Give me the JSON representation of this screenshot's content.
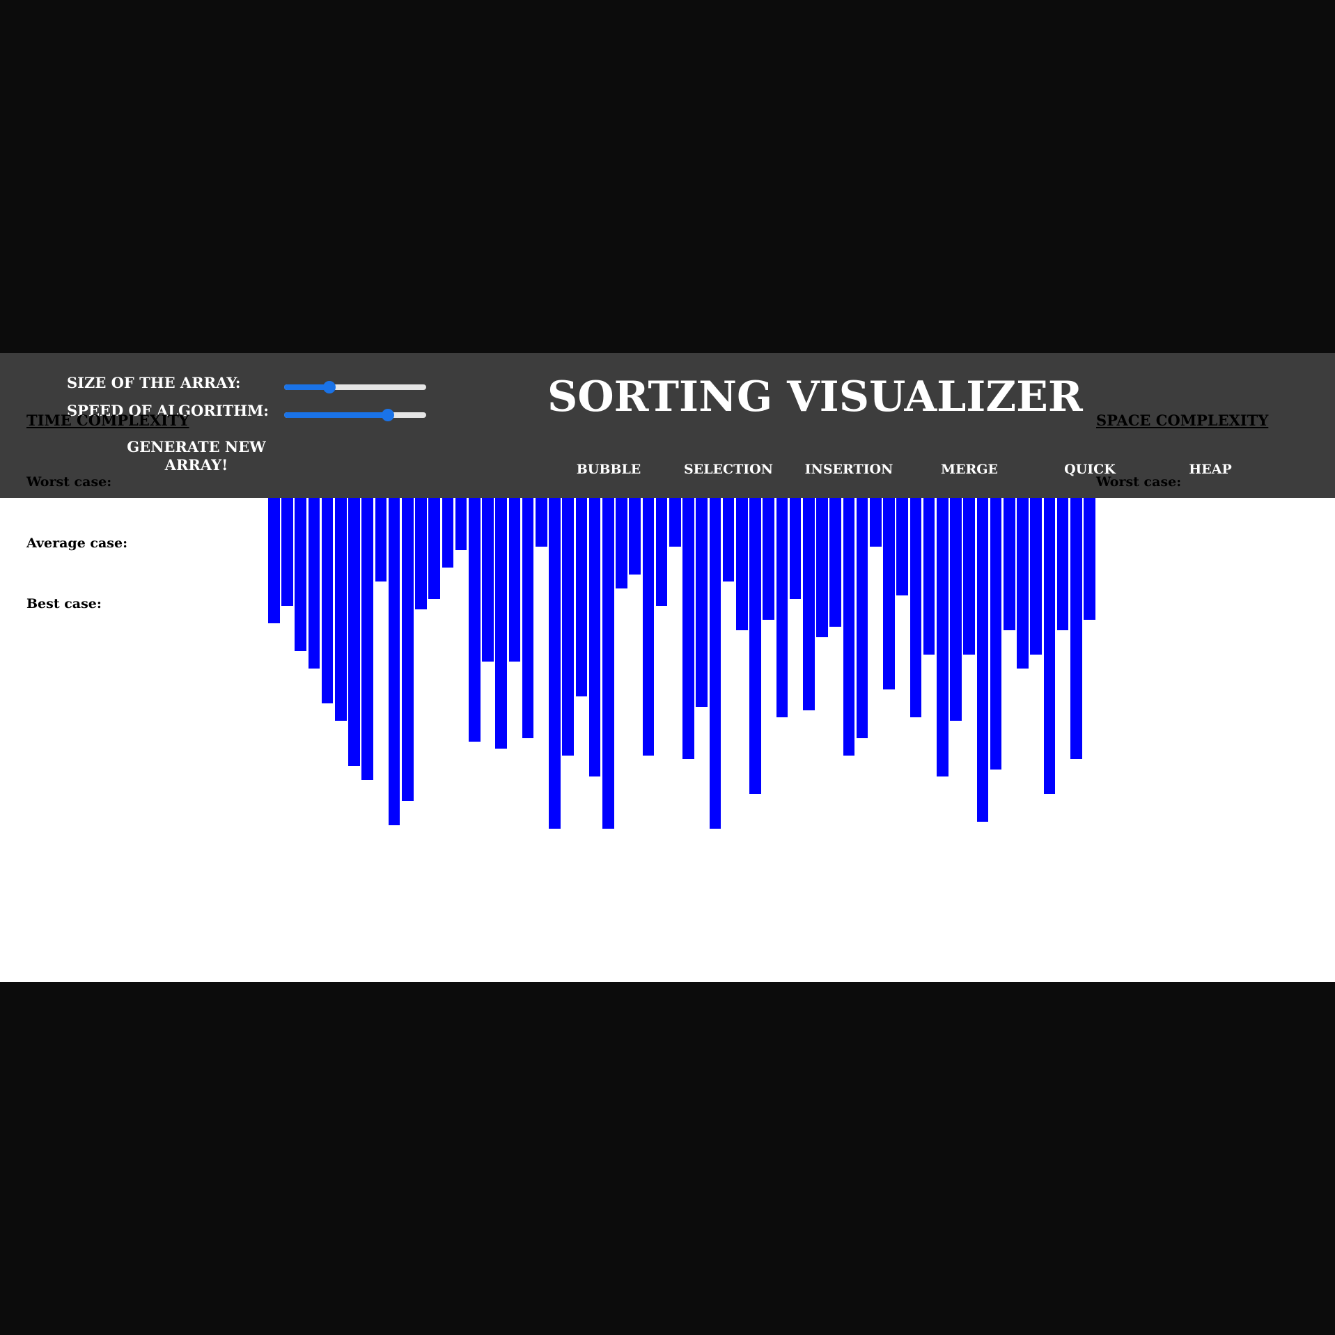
{
  "header": {
    "title": "SORTING VISUALIZER",
    "size_label": "SIZE OF THE ARRAY:",
    "speed_label": "SPEED OF ALGORITHM:",
    "size_slider_value": 0.32,
    "speed_slider_value": 0.73,
    "generate_label": "GENERATE NEW ARRAY!",
    "algorithms": [
      "BUBBLE",
      "SELECTION",
      "INSERTION",
      "MERGE",
      "QUICK",
      "HEAP"
    ]
  },
  "time_complexity": {
    "heading": "TIME COMPLEXITY",
    "worst_label": "Worst case:",
    "average_label": "Average case:",
    "best_label": "Best case:"
  },
  "space_complexity": {
    "heading": "SPACE COMPLEXITY",
    "worst_label": "Worst case:"
  },
  "colors": {
    "bar": "#0000ff",
    "header_bg": "#3d3d3d",
    "page_bg": "#ffffff",
    "outer_bg": "#0c0c0c",
    "slider_accent": "#1a73e8"
  },
  "chart_data": {
    "type": "bar",
    "values": [
      36,
      31,
      44,
      49,
      59,
      64,
      77,
      81,
      24,
      94,
      87,
      32,
      29,
      20,
      15,
      70,
      47,
      72,
      47,
      69,
      14,
      95,
      74,
      57,
      80,
      95,
      26,
      22,
      74,
      31,
      14,
      75,
      60,
      95,
      24,
      38,
      85,
      35,
      63,
      29,
      61,
      40,
      37,
      74,
      69,
      14,
      55,
      28,
      63,
      45,
      80,
      64,
      45,
      93,
      78,
      38,
      49,
      45,
      85,
      38,
      75,
      35
    ],
    "ylim": [
      0,
      100
    ]
  }
}
